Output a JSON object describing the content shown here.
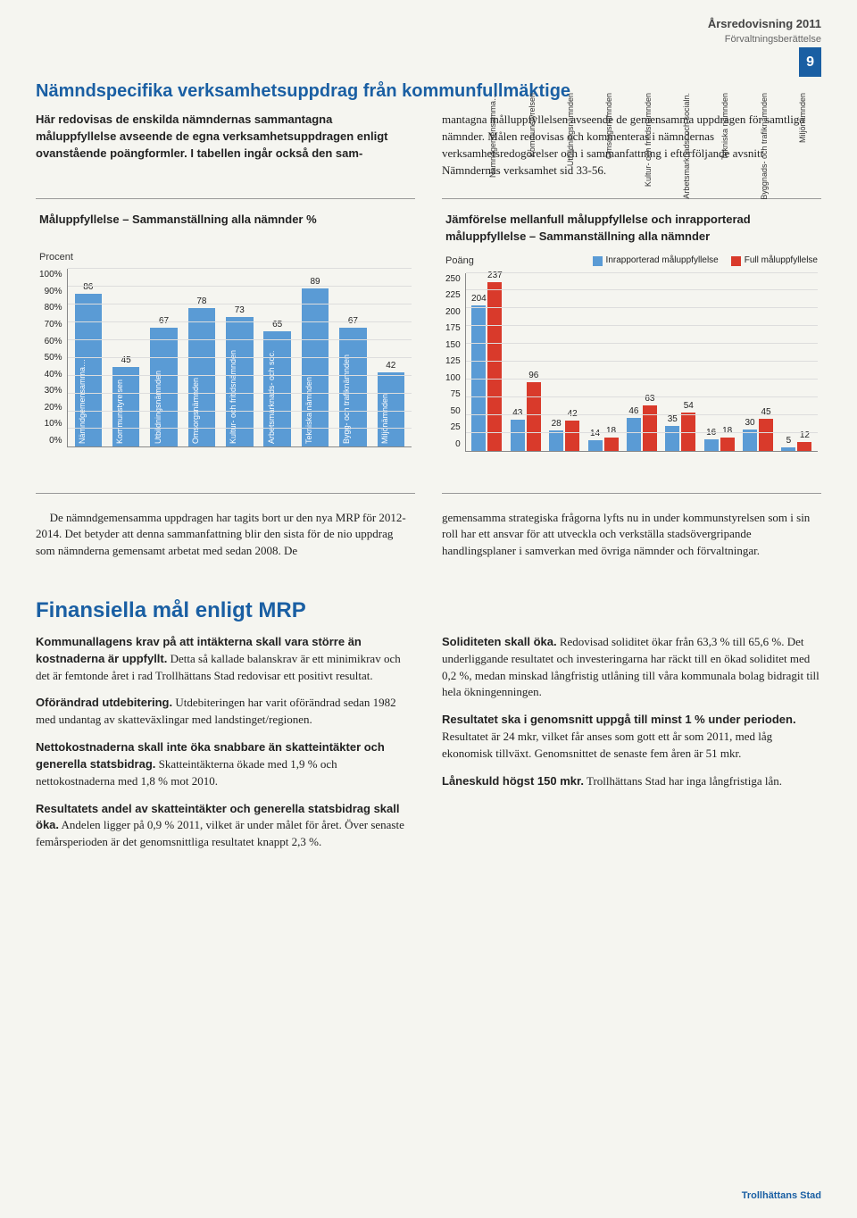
{
  "header": {
    "title": "Årsredovisning 2011",
    "subtitle": "Förvaltningsberättelse",
    "page_num": "9"
  },
  "section1": {
    "heading": "Nämndspecifika verksamhetsuppdrag från kommunfullmäktige",
    "left_lead": "Här redovisas de enskilda nämndernas sammantagna måluppfyllelse avseende de egna verksamhetsuppdragen enligt ovanstående poängformler. I tabellen ingår också den sam-",
    "right_text": "mantagna målluppfyllelsen avseende de gemensamma uppdragen för samtliga nämnder. Målen redovisas och kommenteras i nämndernas verksamhetsredogörelser och i sammanfattning i efterföljande avsnitt Nämndernas verksamhet sid 33-56."
  },
  "chart1": {
    "type": "bar",
    "title": "Måluppfyllelse – Sammanställning alla nämnder %",
    "subtitle": "Procent",
    "ylim": [
      0,
      100
    ],
    "ytick_step": 10,
    "ytick_suffix": "%",
    "bar_color": "#5a9bd5",
    "background": "#ffffff",
    "grid_color": "#dddddd",
    "categories": [
      "Nämndgemensamma…",
      "Kommunstyrelsen",
      "Utbildningsnämnden",
      "Omsorgsnämnden",
      "Kultur- och fritidsnämnden",
      "Arbetsmarknads- och soc.",
      "Tekniska nämnden",
      "Bygg- och trafiknämnden",
      "Miljönämnden"
    ],
    "values": [
      86,
      45,
      67,
      78,
      73,
      65,
      89,
      67,
      42
    ],
    "label_color": "#ffffff",
    "value_fontsize": 10
  },
  "chart2": {
    "type": "grouped-bar",
    "title": "Jämförelse mellanfull måluppfyllelse och inrapporterad måluppfyllelse – Sammanställning alla nämnder",
    "subtitle": "Poäng",
    "legend": [
      {
        "label": "Inrapporterad måluppfyllelse",
        "color": "#5a9bd5"
      },
      {
        "label": "Full måluppfyllelse",
        "color": "#d93a2b"
      }
    ],
    "ylim": [
      0,
      250
    ],
    "ytick_step": 25,
    "grid_color": "#dddddd",
    "categories": [
      "Nämndgemensamma…",
      "Kommunstyrelsen",
      "Utbildningsnämnden",
      "Omsorgsnämnden",
      "Kultur- och fritidsnämnden",
      "Arbetsmarknads- och socialn.",
      "Tekniska nämnden",
      "Byggnads- och trafiknämnden",
      "Miljönämnden"
    ],
    "series_a": [
      204,
      43,
      28,
      14,
      46,
      35,
      16,
      30,
      5
    ],
    "series_b": [
      237,
      96,
      42,
      18,
      63,
      54,
      18,
      45,
      12
    ],
    "label_color_outside": "#333333"
  },
  "body2": {
    "left": "De nämndgemensamma uppdragen har tagits bort ur den nya MRP för 2012-2014. Det betyder att denna sammanfattning blir den sista för de nio uppdrag som nämnderna gemensamt arbetat med sedan 2008. De",
    "right": "gemensamma strategiska frågorna lyfts nu in under kommunstyrelsen som i sin roll har ett ansvar för att utveckla och verkställa stadsövergripande handlingsplaner i samverkan med övriga nämnder och förvaltningar."
  },
  "section2": {
    "heading": "Finansiella mål enligt MRP",
    "left": [
      {
        "b": "Kommunallagens krav på att intäkterna skall vara större än kostnaderna är uppfyllt.",
        "t": " Detta så kallade balanskrav är ett minimikrav och det är femtonde året i rad Trollhättans Stad redovisar ett positivt resultat."
      },
      {
        "b": "Oförändrad utdebitering.",
        "t": " Utdebiteringen har varit oförändrad sedan 1982 med undantag av skatteväxlingar med landstinget/regionen."
      },
      {
        "b": "Nettokostnaderna skall inte öka snabbare än skatteintäkter och generella statsbidrag.",
        "t": " Skatteintäkterna ökade med 1,9 % och nettokostnaderna med 1,8 % mot 2010."
      },
      {
        "b": "Resultatets andel av skatteintäkter och generella statsbidrag skall öka.",
        "t": " Andelen ligger på 0,9 % 2011, vilket är under målet för året. Över senaste femårsperioden är det genomsnittliga resultatet knappt 2,3 %."
      }
    ],
    "right": [
      {
        "b": "Soliditeten skall öka.",
        "t": " Redovisad soliditet ökar från 63,3 % till 65,6 %. Det underliggande resultatet och investeringarna har räckt till en ökad soliditet med 0,2 %, medan minskad långfristig utlåning till våra kommunala bolag bidragit till hela ökningenningen."
      },
      {
        "b": "Resultatet ska i genomsnitt uppgå till minst 1 % under perioden.",
        "t": " Resultatet är 24 mkr, vilket får anses som gott ett år som 2011, med låg ekonomisk tillväxt. Genomsnittet de senaste fem åren är 51 mkr."
      },
      {
        "b": "Låneskuld högst 150 mkr.",
        "t": " Trollhättans Stad har inga långfristiga lån."
      }
    ]
  },
  "footer": "Trollhättans Stad"
}
